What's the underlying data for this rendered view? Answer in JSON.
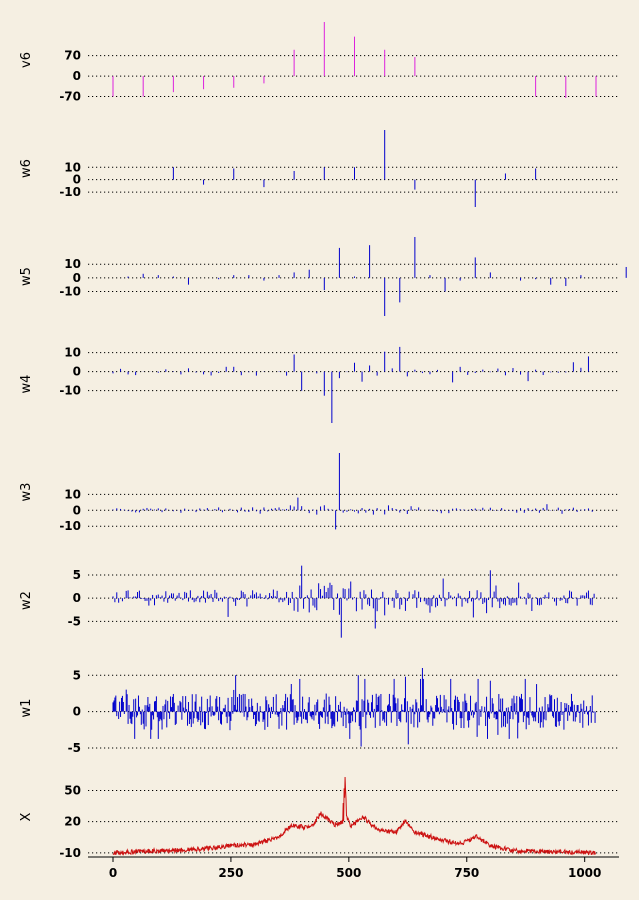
{
  "chart_data": {
    "type": "multi-panel stick/line plot (wavelet decomposition)",
    "x_axis": {
      "ticks": [
        0,
        250,
        500,
        750,
        1000
      ],
      "range": [
        0,
        1024
      ],
      "n_points": 1024
    },
    "panels": [
      {
        "label": "v6",
        "type": "stick",
        "color": "#dd22dd",
        "yticks": [
          -70,
          0,
          70
        ],
        "gridlines": [
          -70,
          0,
          70
        ],
        "ylim": [
          -75,
          185
        ],
        "spacing": 64,
        "values": [
          -70,
          -70,
          -55,
          -45,
          -40,
          -25,
          90,
          185,
          135,
          90,
          65,
          0,
          0,
          0,
          -70,
          -75,
          -70
        ]
      },
      {
        "label": "w6",
        "type": "stick",
        "color": "#0000cc",
        "yticks": [
          -10,
          0,
          10
        ],
        "gridlines": [
          -10,
          0,
          10
        ],
        "ylim": [
          -22,
          40
        ],
        "spacing": 64,
        "values": [
          0,
          0,
          10,
          -4,
          9,
          -6,
          7,
          10,
          10,
          40,
          -8,
          0,
          -22,
          5,
          9,
          0
        ]
      },
      {
        "label": "w5",
        "type": "stick",
        "color": "#0000cc",
        "yticks": [
          -10,
          0,
          10
        ],
        "gridlines": [
          -10,
          0,
          10
        ],
        "ylim": [
          -28,
          30
        ],
        "spacing": 32,
        "values": [
          0,
          1,
          3,
          2,
          1,
          -5,
          0,
          -1,
          2,
          2,
          -2,
          2,
          4,
          6,
          -9,
          22,
          1,
          24,
          -28,
          -18,
          30,
          2,
          -10,
          -2,
          15,
          4,
          0,
          -2,
          -1,
          -5,
          -6,
          2,
          0,
          0,
          8,
          -2,
          0,
          1,
          3,
          0
        ]
      },
      {
        "label": "w4",
        "type": "stick",
        "color": "#0000cc",
        "yticks": [
          -10,
          0,
          10
        ],
        "gridlines": [
          -10,
          0,
          10
        ],
        "ylim": [
          -27,
          14
        ],
        "spacing": 16
      },
      {
        "label": "w3",
        "type": "stick",
        "color": "#0000cc",
        "yticks": [
          -10,
          0,
          10
        ],
        "gridlines": [
          -10,
          0,
          10
        ],
        "ylim": [
          -13,
          36
        ],
        "spacing": 8
      },
      {
        "label": "w2",
        "type": "stick",
        "color": "#0000cc",
        "yticks": [
          -5,
          0,
          5
        ],
        "gridlines": [
          -5,
          0,
          5
        ],
        "ylim": [
          -9,
          8
        ],
        "spacing": 4
      },
      {
        "label": "w1",
        "type": "stick",
        "color": "#0000cc",
        "yticks": [
          -5,
          0,
          5
        ],
        "gridlines": [
          -5,
          0,
          5
        ],
        "ylim": [
          -5,
          6
        ],
        "spacing": 2
      },
      {
        "label": "X",
        "type": "line",
        "color": "#cc1111",
        "yticks": [
          -10,
          20,
          50
        ],
        "gridlines": [
          -10,
          20,
          50
        ],
        "ylim": [
          -14,
          63
        ],
        "profile": [
          [
            0,
            -10
          ],
          [
            100,
            -8
          ],
          [
            200,
            -6
          ],
          [
            250,
            -3
          ],
          [
            300,
            -2
          ],
          [
            350,
            5
          ],
          [
            380,
            17
          ],
          [
            400,
            15
          ],
          [
            420,
            14
          ],
          [
            440,
            28
          ],
          [
            470,
            17
          ],
          [
            490,
            20
          ],
          [
            492,
            63
          ],
          [
            495,
            25
          ],
          [
            505,
            15
          ],
          [
            530,
            25
          ],
          [
            560,
            12
          ],
          [
            600,
            10
          ],
          [
            620,
            21
          ],
          [
            640,
            10
          ],
          [
            700,
            2
          ],
          [
            740,
            -1
          ],
          [
            770,
            6
          ],
          [
            800,
            -3
          ],
          [
            850,
            -8
          ],
          [
            1024,
            -10
          ]
        ],
        "spikes": [
          [
            488,
            38
          ],
          [
            490,
            52
          ],
          [
            492,
            63
          ],
          [
            494,
            42
          ]
        ]
      }
    ]
  }
}
